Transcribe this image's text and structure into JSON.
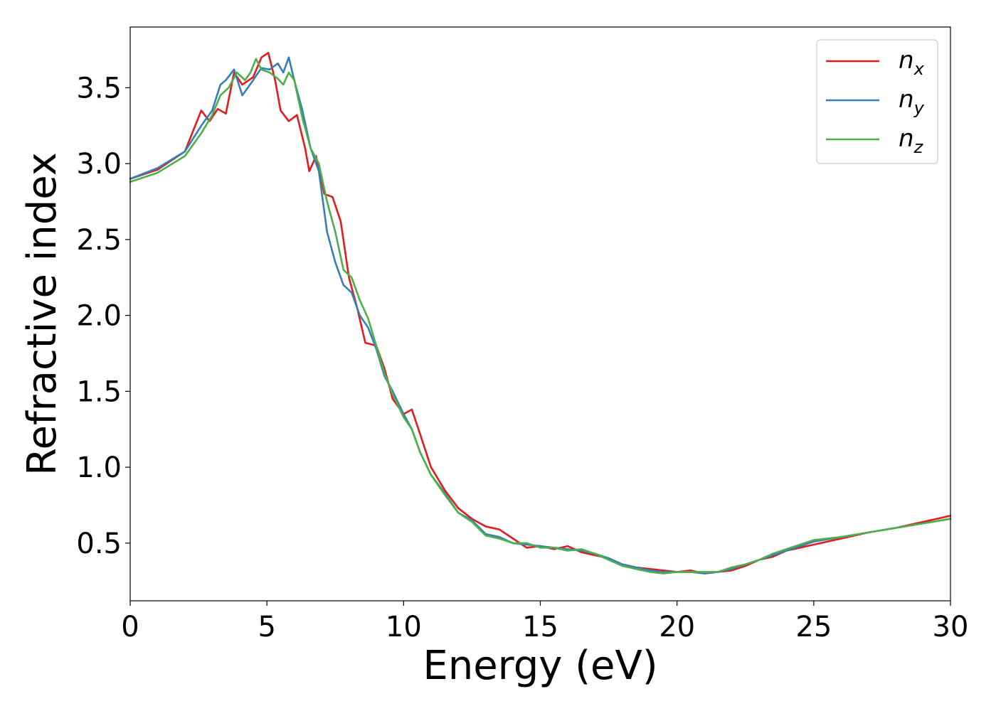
{
  "chart_data": {
    "type": "line",
    "title": "",
    "xlabel": "Energy (eV)",
    "ylabel": "Refractive index",
    "xlim": [
      0,
      30
    ],
    "ylim": [
      0.12,
      3.9
    ],
    "xticks": [
      0,
      5,
      10,
      15,
      20,
      25,
      30
    ],
    "xtick_labels": [
      "0",
      "5",
      "10",
      "15",
      "20",
      "25",
      "30"
    ],
    "yticks": [
      0.5,
      1.0,
      1.5,
      2.0,
      2.5,
      3.0,
      3.5
    ],
    "ytick_labels": [
      "0.5",
      "1.0",
      "1.5",
      "2.0",
      "2.5",
      "3.0",
      "3.5"
    ],
    "grid": false,
    "legend_position": "top-right",
    "series": [
      {
        "name": "n_x",
        "label_base": "n",
        "label_sub": "x",
        "color": "#e41a1c",
        "x": [
          0,
          1,
          2,
          2.6,
          2.9,
          3.2,
          3.5,
          3.8,
          4.1,
          4.5,
          4.8,
          5.05,
          5.3,
          5.5,
          5.8,
          6.1,
          6.4,
          6.55,
          6.8,
          7.1,
          7.4,
          7.7,
          8.0,
          8.3,
          8.6,
          9.0,
          9.3,
          9.6,
          10.0,
          10.3,
          10.6,
          11.0,
          11.5,
          12.0,
          12.5,
          13.0,
          13.5,
          14.0,
          14.5,
          15.0,
          15.5,
          16.0,
          16.5,
          17.0,
          17.5,
          18.0,
          18.5,
          19.0,
          19.5,
          20.0,
          20.5,
          21.0,
          21.5,
          22.0,
          22.5,
          23.0,
          23.5,
          24.0,
          24.5,
          25.0,
          26.0,
          27.0,
          28.0,
          29.0,
          30.0
        ],
        "y": [
          2.9,
          2.96,
          3.08,
          3.35,
          3.28,
          3.36,
          3.33,
          3.6,
          3.52,
          3.57,
          3.7,
          3.73,
          3.55,
          3.35,
          3.28,
          3.32,
          3.1,
          2.95,
          3.05,
          2.8,
          2.78,
          2.62,
          2.25,
          2.05,
          1.82,
          1.8,
          1.65,
          1.45,
          1.35,
          1.38,
          1.22,
          1.0,
          0.85,
          0.73,
          0.66,
          0.61,
          0.59,
          0.53,
          0.47,
          0.48,
          0.46,
          0.48,
          0.44,
          0.42,
          0.4,
          0.36,
          0.34,
          0.33,
          0.32,
          0.31,
          0.32,
          0.3,
          0.31,
          0.32,
          0.35,
          0.39,
          0.41,
          0.45,
          0.47,
          0.49,
          0.53,
          0.57,
          0.6,
          0.64,
          0.68
        ]
      },
      {
        "name": "n_y",
        "label_base": "n",
        "label_sub": "y",
        "color": "#377eb8",
        "x": [
          0,
          1,
          2,
          2.6,
          3.0,
          3.3,
          3.5,
          3.8,
          4.1,
          4.5,
          4.8,
          5.1,
          5.4,
          5.6,
          5.8,
          6.0,
          6.3,
          6.6,
          6.9,
          7.2,
          7.5,
          7.8,
          8.1,
          8.4,
          8.7,
          9.0,
          9.3,
          9.6,
          10.0,
          10.3,
          10.6,
          11.0,
          11.5,
          12.0,
          12.5,
          13.0,
          13.5,
          14.0,
          14.5,
          15.0,
          15.5,
          16.0,
          16.5,
          17.0,
          17.5,
          18.0,
          18.5,
          19.0,
          19.5,
          20.0,
          20.5,
          21.0,
          21.5,
          22.0,
          22.5,
          23.0,
          23.5,
          24.0,
          24.5,
          25.0,
          26.0,
          27.0,
          28.0,
          29.0,
          30.0
        ],
        "y": [
          2.9,
          2.97,
          3.08,
          3.25,
          3.35,
          3.52,
          3.55,
          3.62,
          3.45,
          3.55,
          3.63,
          3.62,
          3.66,
          3.6,
          3.7,
          3.55,
          3.35,
          3.1,
          2.95,
          2.55,
          2.35,
          2.2,
          2.15,
          2.0,
          1.92,
          1.78,
          1.6,
          1.5,
          1.35,
          1.25,
          1.1,
          0.95,
          0.83,
          0.7,
          0.65,
          0.56,
          0.54,
          0.5,
          0.49,
          0.48,
          0.47,
          0.46,
          0.45,
          0.43,
          0.4,
          0.36,
          0.34,
          0.32,
          0.31,
          0.31,
          0.31,
          0.3,
          0.31,
          0.33,
          0.36,
          0.39,
          0.42,
          0.45,
          0.48,
          0.51,
          0.54,
          0.57,
          0.6,
          0.63,
          0.66
        ]
      },
      {
        "name": "n_z",
        "label_base": "n",
        "label_sub": "z",
        "color": "#4daf4a",
        "x": [
          0,
          1,
          2,
          2.6,
          3.0,
          3.3,
          3.6,
          3.9,
          4.2,
          4.4,
          4.6,
          4.8,
          5.1,
          5.4,
          5.6,
          5.8,
          6.0,
          6.3,
          6.6,
          6.9,
          7.2,
          7.5,
          7.8,
          8.1,
          8.4,
          8.7,
          9.0,
          9.3,
          9.6,
          10.0,
          10.3,
          10.6,
          11.0,
          11.5,
          12.0,
          12.5,
          13.0,
          13.5,
          14.0,
          14.5,
          15.0,
          15.5,
          16.0,
          16.5,
          17.0,
          17.5,
          18.0,
          18.5,
          19.0,
          19.5,
          20.0,
          20.5,
          21.0,
          21.5,
          22.0,
          22.5,
          23.0,
          23.5,
          24.0,
          24.5,
          25.0,
          26.0,
          27.0,
          28.0,
          29.0,
          30.0
        ],
        "y": [
          2.88,
          2.94,
          3.05,
          3.2,
          3.32,
          3.45,
          3.5,
          3.6,
          3.55,
          3.6,
          3.69,
          3.62,
          3.6,
          3.56,
          3.52,
          3.6,
          3.55,
          3.3,
          3.1,
          3.0,
          2.75,
          2.55,
          2.3,
          2.25,
          2.1,
          1.98,
          1.8,
          1.62,
          1.48,
          1.33,
          1.25,
          1.1,
          0.95,
          0.82,
          0.7,
          0.64,
          0.55,
          0.53,
          0.5,
          0.5,
          0.47,
          0.47,
          0.45,
          0.46,
          0.43,
          0.39,
          0.35,
          0.33,
          0.31,
          0.3,
          0.31,
          0.31,
          0.31,
          0.31,
          0.34,
          0.36,
          0.39,
          0.43,
          0.46,
          0.49,
          0.52,
          0.54,
          0.57,
          0.6,
          0.63,
          0.66
        ]
      }
    ]
  }
}
